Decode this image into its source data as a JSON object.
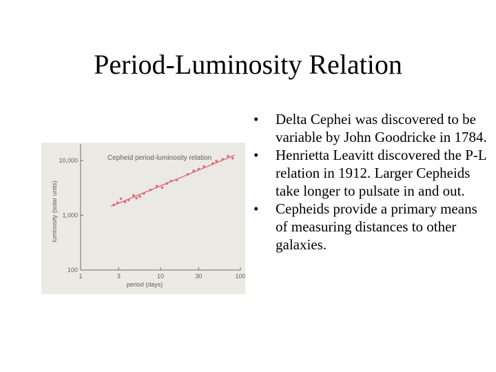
{
  "slide": {
    "title": "Period-Luminosity Relation",
    "bullets": [
      "Delta Cephei was discovered to be variable by John Goodricke in 1784.",
      "Henrietta Leavitt discovered the P-L relation in 1912. Larger Cepheids take longer to pulsate in and out.",
      "Cepheids provide a primary means of measuring distances to other galaxies."
    ],
    "bullet_symbol": "•"
  },
  "colors": {
    "plot_background": "#ebe9e4",
    "points": "#e06a78",
    "fit_line": "#e4646e",
    "axis": "#6a6a6a",
    "text": "#5e5e5e"
  },
  "chart_data": {
    "type": "scatter",
    "title": "Cepheid period-luminosity relation",
    "xlabel": "period (days)",
    "ylabel": "luminosity (solar units)",
    "x_scale": "log",
    "y_scale": "log",
    "xlim": [
      1,
      100
    ],
    "ylim": [
      100,
      20000
    ],
    "x_ticks": [
      {
        "value": 1,
        "label": "1"
      },
      {
        "value": 3,
        "label": "3"
      },
      {
        "value": 10,
        "label": "10"
      },
      {
        "value": 30,
        "label": "30"
      },
      {
        "value": 100,
        "label": "100"
      }
    ],
    "y_ticks": [
      {
        "value": 100,
        "label": "100"
      },
      {
        "value": 1000,
        "label": "1,000"
      },
      {
        "value": 10000,
        "label": "10,000"
      }
    ],
    "grid": false,
    "legend": "none",
    "points": [
      {
        "x": 2.6,
        "y": 1550
      },
      {
        "x": 2.9,
        "y": 1700
      },
      {
        "x": 3.2,
        "y": 2000
      },
      {
        "x": 3.6,
        "y": 1750
      },
      {
        "x": 4.0,
        "y": 1900
      },
      {
        "x": 4.6,
        "y": 2300
      },
      {
        "x": 5.0,
        "y": 2050
      },
      {
        "x": 5.5,
        "y": 2200
      },
      {
        "x": 6.2,
        "y": 2500
      },
      {
        "x": 7.5,
        "y": 2900
      },
      {
        "x": 9.0,
        "y": 3400
      },
      {
        "x": 10.5,
        "y": 3200
      },
      {
        "x": 12.0,
        "y": 3800
      },
      {
        "x": 13.5,
        "y": 4200
      },
      {
        "x": 16.0,
        "y": 4400
      },
      {
        "x": 22.0,
        "y": 5600
      },
      {
        "x": 26.0,
        "y": 6500
      },
      {
        "x": 30.0,
        "y": 7000
      },
      {
        "x": 35.0,
        "y": 7800
      },
      {
        "x": 45.0,
        "y": 8800
      },
      {
        "x": 50.0,
        "y": 9800
      },
      {
        "x": 60.0,
        "y": 10500
      },
      {
        "x": 70.0,
        "y": 12000
      },
      {
        "x": 80.0,
        "y": 11000
      }
    ],
    "fit_line": [
      {
        "x": 2.4,
        "y": 1450
      },
      {
        "x": 85,
        "y": 12500
      }
    ]
  }
}
